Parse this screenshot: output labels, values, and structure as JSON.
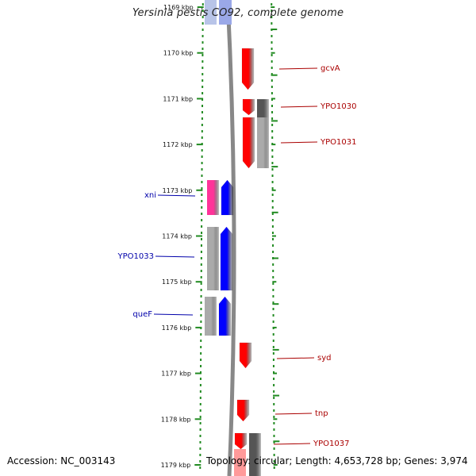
{
  "title": "Yersinia pestis CO92, complete genome",
  "footer": {
    "accession": "Accession: NC_003143",
    "summary": "Topology: circular; Length: 4,653,728 bp; Genes: 3,974"
  },
  "colors": {
    "forward_strand": "#ff0000",
    "reverse_strand": "#0000ff",
    "reverse_label": "#0000aa",
    "forward_label": "#aa0000",
    "magenta_gene": "#ff3399",
    "gray_gene": "#aaaaaa",
    "dark_gray_gene": "#555555",
    "dotted_ring": "#228b22",
    "backbone": "#888888"
  },
  "ticks": [
    "1169 kbp",
    "1170 kbp",
    "1171 kbp",
    "1172 kbp",
    "1173 kbp",
    "1174 kbp",
    "1175 kbp",
    "1176 kbp",
    "1177 kbp",
    "1178 kbp",
    "1179 kbp"
  ],
  "genes": {
    "forward": [
      {
        "label": "gcvA"
      },
      {
        "label": "YPO1030"
      },
      {
        "label": "YPO1031"
      },
      {
        "label": "syd"
      },
      {
        "label": "tnp"
      },
      {
        "label": "YPO1037"
      }
    ],
    "reverse": [
      {
        "label": "xni"
      },
      {
        "label": "YPO1033"
      },
      {
        "label": "queF"
      }
    ]
  }
}
